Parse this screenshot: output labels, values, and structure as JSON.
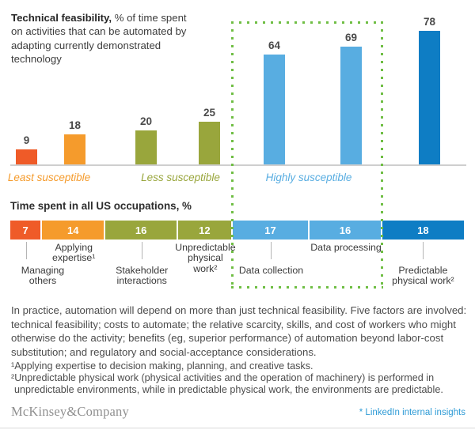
{
  "title": {
    "bold": "Technical feasibility,",
    "rest": " % of time spent on activities that can be automated by adapting currently demonstrated technology"
  },
  "colors": {
    "orangeDark": "#EF5B28",
    "orange": "#F59B2C",
    "green": "#99A63C",
    "blueLight": "#58ADE1",
    "blueDark": "#0E7DC4",
    "dotGreen": "#6FBE44",
    "linkBlue": "#2E9BD6"
  },
  "chart_data": [
    {
      "type": "bar",
      "title": "Technical feasibility, % of time spent on activities that can be automated by adapting currently demonstrated technology",
      "categories": [
        "Managing others",
        "Applying expertise",
        "Stakeholder interactions",
        "Unpredictable physical work",
        "Data collection",
        "Data processing",
        "Predictable physical work"
      ],
      "values": [
        9,
        18,
        20,
        25,
        64,
        69,
        78
      ],
      "bar_colors": [
        "orangeDark",
        "orange",
        "green",
        "green",
        "blueLight",
        "blueLight",
        "blueDark"
      ],
      "ylim": [
        0,
        100
      ],
      "groups": [
        {
          "label": "Least susceptible",
          "color": "orange",
          "bars": [
            0,
            1
          ]
        },
        {
          "label": "Less susceptible",
          "color": "green",
          "bars": [
            2,
            3
          ]
        },
        {
          "label": "Highly susceptible",
          "color": "blueLight",
          "bars": [
            4,
            5,
            6
          ]
        }
      ],
      "highlight_box": {
        "style": "dotted",
        "color": "dotGreen",
        "encloses_bars": [
          4,
          5
        ]
      }
    },
    {
      "type": "bar",
      "variant": "horizontal-stacked",
      "title": "Time spent in all US occupations, %",
      "total": 100,
      "segments": [
        {
          "value": 7,
          "label": "Managing\nothers",
          "label_level": "lower",
          "color": "orangeDark"
        },
        {
          "value": 14,
          "label": "Applying\nexpertise¹",
          "label_level": "upper",
          "color": "orange"
        },
        {
          "value": 16,
          "label": "Stakeholder\ninteractions",
          "label_level": "lower",
          "color": "green"
        },
        {
          "value": 12,
          "label": "Unpredictable\nphysical\nwork²",
          "label_level": "upper",
          "color": "green"
        },
        {
          "value": 17,
          "label": "Data collection",
          "label_level": "lower",
          "color": "blueLight"
        },
        {
          "value": 16,
          "label": "Data processing",
          "label_level": "upper",
          "color": "blueLight"
        },
        {
          "value": 18,
          "label": "Predictable\nphysical work²",
          "label_level": "lower",
          "color": "blueDark"
        }
      ]
    }
  ],
  "body_text": "In practice, automation will depend on more than just technical feasibility. Five factors are involved: technical feasibility; costs to automate; the relative scarcity, skills, and cost of workers who might otherwise do the activity; benefits (eg, superior performance) of automation beyond labor-cost substitution; and regulatory and social-acceptance considerations.",
  "footnotes": [
    "¹Applying expertise to decision making, planning, and creative tasks.",
    "²Unpredictable physical work (physical activities and the operation of machinery) is performed in unpredictable environments, while in predictable physical work, the environments are predictable."
  ],
  "footer": {
    "brand": "McKinsey&Company",
    "note": "* LinkedIn internal insights"
  }
}
